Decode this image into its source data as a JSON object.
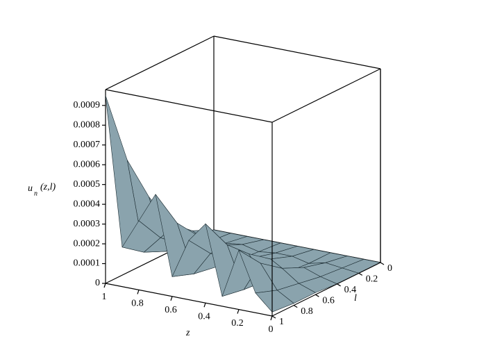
{
  "chart_data": {
    "type": "surface",
    "xlabel": "z",
    "ylabel": "l",
    "zlabel": {
      "main": "u",
      "sub": "n",
      "args": "(z,l)"
    },
    "x": [
      0,
      0.1,
      0.2,
      0.3,
      0.4,
      0.5,
      0.6,
      0.7,
      0.8,
      0.9,
      1
    ],
    "y": [
      0,
      0.2,
      0.4,
      0.6,
      0.8,
      1
    ],
    "values": [
      [
        0,
        0,
        0,
        0,
        0,
        0,
        0,
        0,
        0,
        0,
        0
      ],
      [
        0,
        1e-05,
        2e-05,
        0,
        2e-05,
        2e-05,
        1e-05,
        3e-05,
        2e-05,
        1e-05,
        5e-05
      ],
      [
        0,
        2e-05,
        5e-05,
        1e-05,
        6e-05,
        5e-05,
        2e-05,
        8e-05,
        5e-05,
        3e-05,
        0.00014
      ],
      [
        1e-05,
        4e-05,
        0.0001,
        2e-05,
        0.00014,
        0.0001,
        4e-05,
        0.00018,
        0.00012,
        7e-05,
        0.00033
      ],
      [
        1e-05,
        6e-05,
        0.00018,
        3e-05,
        0.00024,
        0.00018,
        6e-05,
        0.0003,
        0.00021,
        0.00012,
        0.00057
      ],
      [
        2e-05,
        0.0001,
        0.0003,
        5e-05,
        0.0004,
        0.0003,
        0.0001,
        0.0005,
        0.00035,
        0.0002,
        0.00095
      ]
    ],
    "color": "#8aa3ad",
    "xlim": [
      0,
      1
    ],
    "ylim": [
      0,
      1
    ],
    "zlim": [
      0,
      0.00098
    ],
    "xticks": [
      1,
      0.8,
      0.6,
      0.4,
      0.2,
      0
    ],
    "yticks": [
      0,
      0.2,
      0.4,
      0.6,
      0.8,
      1
    ],
    "zticks": [
      0,
      0.0001,
      0.0002,
      0.0003,
      0.0004,
      0.0005,
      0.0006,
      0.0007,
      0.0008,
      0.0009
    ]
  }
}
